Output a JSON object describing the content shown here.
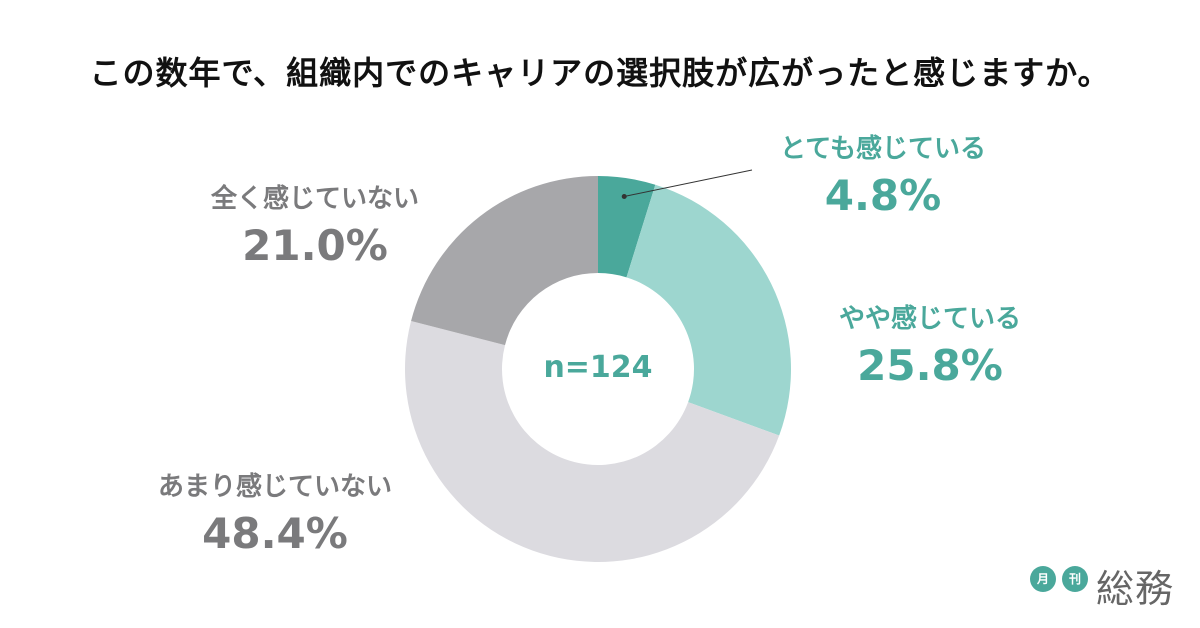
{
  "title": "この数年で、組織内でのキャリアの選択肢が広がったと感じますか。",
  "center_label": "n=124",
  "chart_data": {
    "type": "pie",
    "title": "この数年で、組織内でのキャリアの選択肢が広がったと感じますか。",
    "n": "n=124",
    "slices": [
      {
        "label": "とても感じている",
        "value": 4.8,
        "display": "4.8%",
        "color": "#4aa89b"
      },
      {
        "label": "やや感じている",
        "value": 25.8,
        "display": "25.8%",
        "color": "#9dd6cf"
      },
      {
        "label": "あまり感じていない",
        "value": 48.4,
        "display": "48.4%",
        "color": "#dcdbe0"
      },
      {
        "label": "全く感じていない",
        "value": 21.0,
        "display": "21.0%",
        "color": "#a7a7aa"
      }
    ]
  },
  "labels": [
    {
      "cat": "とても感じている",
      "pct": "4.8%",
      "color": "#4aa89b"
    },
    {
      "cat": "やや感じている",
      "pct": "25.8%",
      "color": "#4aa89b"
    },
    {
      "cat": "あまり感じていない",
      "pct": "48.4%",
      "color": "#7a7a7c"
    },
    {
      "cat": "全く感じていない",
      "pct": "21.0%",
      "color": "#7a7a7c"
    }
  ],
  "logo": {
    "badge1": "月",
    "badge2": "刊",
    "text": "総務",
    "color": "#4aa89b"
  }
}
